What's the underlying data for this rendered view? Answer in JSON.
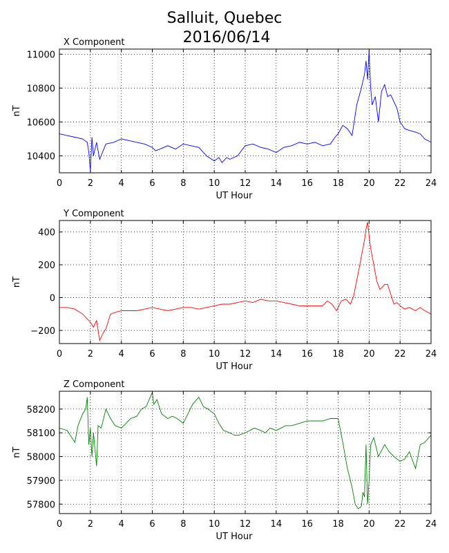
{
  "title_line1": "Salluit, Quebec",
  "title_line2": "2016/06/14",
  "chart_data": [
    {
      "type": "line",
      "title": "X Component",
      "xlabel": "UT Hour",
      "ylabel": "nT",
      "xlim": [
        0,
        24
      ],
      "ylim": [
        10300,
        11030
      ],
      "xticks": [
        0,
        2,
        4,
        6,
        8,
        10,
        12,
        14,
        16,
        18,
        20,
        22,
        24
      ],
      "yticks": [
        10400,
        10600,
        10800,
        11000
      ],
      "grid": true,
      "color": "#0000ff",
      "series": [
        {
          "x": [
            0,
            0.5,
            1,
            1.5,
            1.8,
            1.9,
            2,
            2.1,
            2.2,
            2.4,
            2.6,
            3,
            3.5,
            4,
            4.5,
            5,
            5.5,
            6,
            6.2,
            6.5,
            7,
            7.5,
            8,
            8.5,
            9,
            9.5,
            10,
            10.3,
            10.5,
            10.8,
            11,
            11.5,
            12,
            12.5,
            13,
            13.5,
            14,
            14.5,
            15,
            15.5,
            16,
            16.5,
            17,
            17.5,
            17.8,
            18,
            18.3,
            18.6,
            18.9,
            19.2,
            19.5,
            19.7,
            19.8,
            19.9,
            20,
            20.1,
            20.2,
            20.4,
            20.6,
            20.8,
            21,
            21.2,
            21.4,
            21.6,
            21.8,
            22,
            22.3,
            22.6,
            23,
            23.3,
            23.6,
            24
          ],
          "values": [
            10530,
            10520,
            10510,
            10500,
            10480,
            10420,
            10310,
            10510,
            10400,
            10480,
            10380,
            10470,
            10480,
            10500,
            10490,
            10480,
            10470,
            10450,
            10430,
            10440,
            10460,
            10440,
            10470,
            10460,
            10450,
            10400,
            10370,
            10390,
            10360,
            10390,
            10380,
            10400,
            10460,
            10470,
            10450,
            10440,
            10420,
            10450,
            10460,
            10480,
            10470,
            10480,
            10460,
            10470,
            10510,
            10530,
            10580,
            10560,
            10520,
            10700,
            10800,
            10880,
            10960,
            10850,
            11020,
            10800,
            10700,
            10750,
            10600,
            10780,
            10820,
            10750,
            10760,
            10720,
            10680,
            10600,
            10560,
            10550,
            10540,
            10530,
            10500,
            10480
          ]
        }
      ]
    },
    {
      "type": "line",
      "title": "Y Component",
      "xlabel": "UT Hour",
      "ylabel": "nT",
      "xlim": [
        0,
        24
      ],
      "ylim": [
        -280,
        470
      ],
      "xticks": [
        0,
        2,
        4,
        6,
        8,
        10,
        12,
        14,
        16,
        18,
        20,
        22,
        24
      ],
      "yticks": [
        -200,
        0,
        200,
        400
      ],
      "grid": true,
      "color": "#ff0000",
      "series": [
        {
          "x": [
            0,
            0.5,
            1,
            1.5,
            1.8,
            2,
            2.2,
            2.4,
            2.5,
            2.6,
            2.8,
            3,
            3.3,
            3.6,
            4,
            4.5,
            5,
            5.5,
            6,
            6.5,
            7,
            7.5,
            8,
            8.5,
            9,
            9.5,
            10,
            10.5,
            11,
            11.5,
            12,
            12.5,
            13,
            13.5,
            14,
            14.5,
            15,
            15.5,
            16,
            16.5,
            17,
            17.3,
            17.6,
            17.9,
            18.2,
            18.5,
            18.8,
            19,
            19.3,
            19.5,
            19.7,
            19.8,
            19.9,
            20,
            20.1,
            20.3,
            20.5,
            20.7,
            21,
            21.2,
            21.4,
            21.6,
            21.8,
            22,
            22.3,
            22.6,
            23,
            23.3,
            23.6,
            24
          ],
          "values": [
            -60,
            -60,
            -70,
            -100,
            -130,
            -150,
            -180,
            -140,
            -200,
            -260,
            -220,
            -190,
            -100,
            -90,
            -80,
            -80,
            -80,
            -70,
            -60,
            -70,
            -80,
            -70,
            -60,
            -60,
            -70,
            -60,
            -50,
            -40,
            -40,
            -30,
            -20,
            -30,
            -10,
            -20,
            -20,
            -30,
            -40,
            -50,
            -50,
            -50,
            -50,
            -20,
            -40,
            -80,
            -20,
            -10,
            -40,
            10,
            150,
            250,
            350,
            420,
            460,
            380,
            300,
            200,
            100,
            50,
            80,
            80,
            20,
            -40,
            -30,
            -50,
            -70,
            -60,
            -80,
            -60,
            -80,
            -100
          ]
        }
      ]
    },
    {
      "type": "line",
      "title": "Z Component",
      "xlabel": "UT Hour",
      "ylabel": "nT",
      "xlim": [
        0,
        24
      ],
      "ylim": [
        57760,
        58275
      ],
      "xticks": [
        0,
        2,
        4,
        6,
        8,
        10,
        12,
        14,
        16,
        18,
        20,
        22,
        24
      ],
      "yticks": [
        57800,
        57900,
        58000,
        58100,
        58200
      ],
      "grid": true,
      "color": "#008000",
      "series": [
        {
          "x": [
            0,
            0.5,
            0.8,
            1,
            1.2,
            1.5,
            1.7,
            1.8,
            1.9,
            2,
            2.1,
            2.2,
            2.4,
            2.5,
            2.7,
            3,
            3.3,
            3.6,
            4,
            4.3,
            4.6,
            5,
            5.3,
            5.6,
            6,
            6.1,
            6.3,
            6.6,
            7,
            7.3,
            7.6,
            8,
            8.3,
            8.6,
            9,
            9.3,
            9.6,
            10,
            10.3,
            10.6,
            11,
            11.3,
            11.6,
            12,
            12.3,
            12.6,
            13,
            13.3,
            13.6,
            14,
            14.3,
            14.6,
            15,
            15.5,
            16,
            16.5,
            17,
            17.5,
            18,
            18.3,
            18.6,
            18.9,
            19.1,
            19.3,
            19.5,
            19.6,
            19.7,
            19.8,
            19.9,
            20,
            20.1,
            20.3,
            20.6,
            21,
            21.3,
            21.6,
            22,
            22.3,
            22.6,
            23,
            23.3,
            23.6,
            24
          ],
          "values": [
            58120,
            58110,
            58080,
            58060,
            58130,
            58180,
            58200,
            58250,
            58050,
            58120,
            58000,
            58100,
            57960,
            58130,
            58120,
            58200,
            58160,
            58130,
            58120,
            58140,
            58160,
            58170,
            58200,
            58210,
            58270,
            58220,
            58240,
            58180,
            58160,
            58170,
            58160,
            58140,
            58180,
            58220,
            58250,
            58210,
            58200,
            58180,
            58140,
            58110,
            58100,
            58090,
            58090,
            58100,
            58110,
            58120,
            58110,
            58100,
            58120,
            58110,
            58120,
            58130,
            58130,
            58140,
            58150,
            58150,
            58150,
            58160,
            58160,
            58060,
            57950,
            57870,
            57800,
            57780,
            57790,
            57850,
            57830,
            58050,
            57800,
            57900,
            58050,
            58080,
            58000,
            58050,
            58020,
            58000,
            57980,
            57990,
            58020,
            57950,
            58050,
            58060,
            58090
          ]
        }
      ]
    }
  ]
}
